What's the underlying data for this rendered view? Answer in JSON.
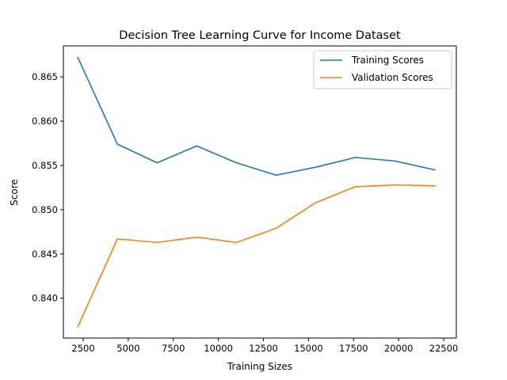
{
  "chart_data": {
    "type": "line",
    "title": "Decision Tree Learning Curve for Income Dataset",
    "xlabel": "Training Sizes",
    "ylabel": "Score",
    "xlim": [
      1400,
      23200
    ],
    "ylim": [
      0.8355,
      0.8685
    ],
    "xticks": [
      2500,
      5000,
      7500,
      10000,
      12500,
      15000,
      17500,
      20000,
      22500
    ],
    "yticks": [
      0.84,
      0.845,
      0.85,
      0.855,
      0.86,
      0.865
    ],
    "yticks_labels": [
      "0.840",
      "0.845",
      "0.850",
      "0.855",
      "0.860",
      "0.865"
    ],
    "grid": false,
    "legend_position": "top-right",
    "x": [
      2200,
      4400,
      6600,
      8800,
      11000,
      13200,
      15400,
      17600,
      19800,
      22000
    ],
    "series": [
      {
        "name": "Training Scores",
        "color": "#1f77b4",
        "values": [
          0.8672,
          0.8574,
          0.8553,
          0.8572,
          0.8553,
          0.8539,
          0.8548,
          0.8559,
          0.8555,
          0.8545
        ]
      },
      {
        "name": "Validation Scores",
        "color": "#ff7f0e",
        "values": [
          0.8368,
          0.8467,
          0.8463,
          0.8469,
          0.8463,
          0.8479,
          0.8508,
          0.8526,
          0.8528,
          0.8527
        ]
      }
    ]
  }
}
